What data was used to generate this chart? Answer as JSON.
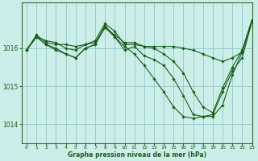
{
  "background_color": "#cceee8",
  "grid_color": "#99cccc",
  "line_color": "#1a5c1a",
  "marker_color": "#1a5c1a",
  "xlim": [
    -0.5,
    23
  ],
  "ylim": [
    1013.5,
    1017.2
  ],
  "yticks": [
    1014,
    1015,
    1016
  ],
  "xticks": [
    0,
    1,
    2,
    3,
    4,
    5,
    6,
    7,
    8,
    9,
    10,
    11,
    12,
    13,
    14,
    15,
    16,
    17,
    18,
    19,
    20,
    21,
    22,
    23
  ],
  "xlabel": "Graphe pression niveau de la mer (hPa)",
  "series": [
    [
      1015.95,
      1016.35,
      1016.15,
      1016.1,
      1016.1,
      1016.05,
      1016.1,
      1016.15,
      1016.55,
      1016.35,
      1016.15,
      1016.15,
      1016.05,
      1016.05,
      1016.05,
      1016.05,
      1016.0,
      1015.95,
      1015.85,
      1015.75,
      1015.65,
      1015.75,
      1015.9,
      1016.7
    ],
    [
      1015.95,
      1016.3,
      1016.2,
      1016.15,
      1016.0,
      1015.95,
      1016.1,
      1016.2,
      1016.65,
      1016.45,
      1016.1,
      1016.1,
      1016.05,
      1016.0,
      1015.85,
      1015.65,
      1015.35,
      1014.85,
      1014.45,
      1014.3,
      1014.95,
      1015.5,
      1015.95,
      1016.75
    ],
    [
      1015.95,
      1016.3,
      1016.1,
      1016.0,
      1015.85,
      1015.75,
      1016.0,
      1016.1,
      1016.6,
      1016.3,
      1015.95,
      1016.05,
      1015.8,
      1015.7,
      1015.55,
      1015.2,
      1014.75,
      1014.25,
      1014.2,
      1014.25,
      1014.85,
      1015.4,
      1015.75,
      1016.7
    ],
    [
      1015.95,
      1016.3,
      1016.1,
      1015.95,
      1015.85,
      1015.75,
      1016.0,
      1016.1,
      1016.55,
      1016.3,
      1016.05,
      1015.85,
      1015.55,
      1015.2,
      1014.85,
      1014.45,
      1014.2,
      1014.15,
      1014.2,
      1014.2,
      1014.5,
      1015.3,
      1015.9,
      1016.75
    ]
  ]
}
